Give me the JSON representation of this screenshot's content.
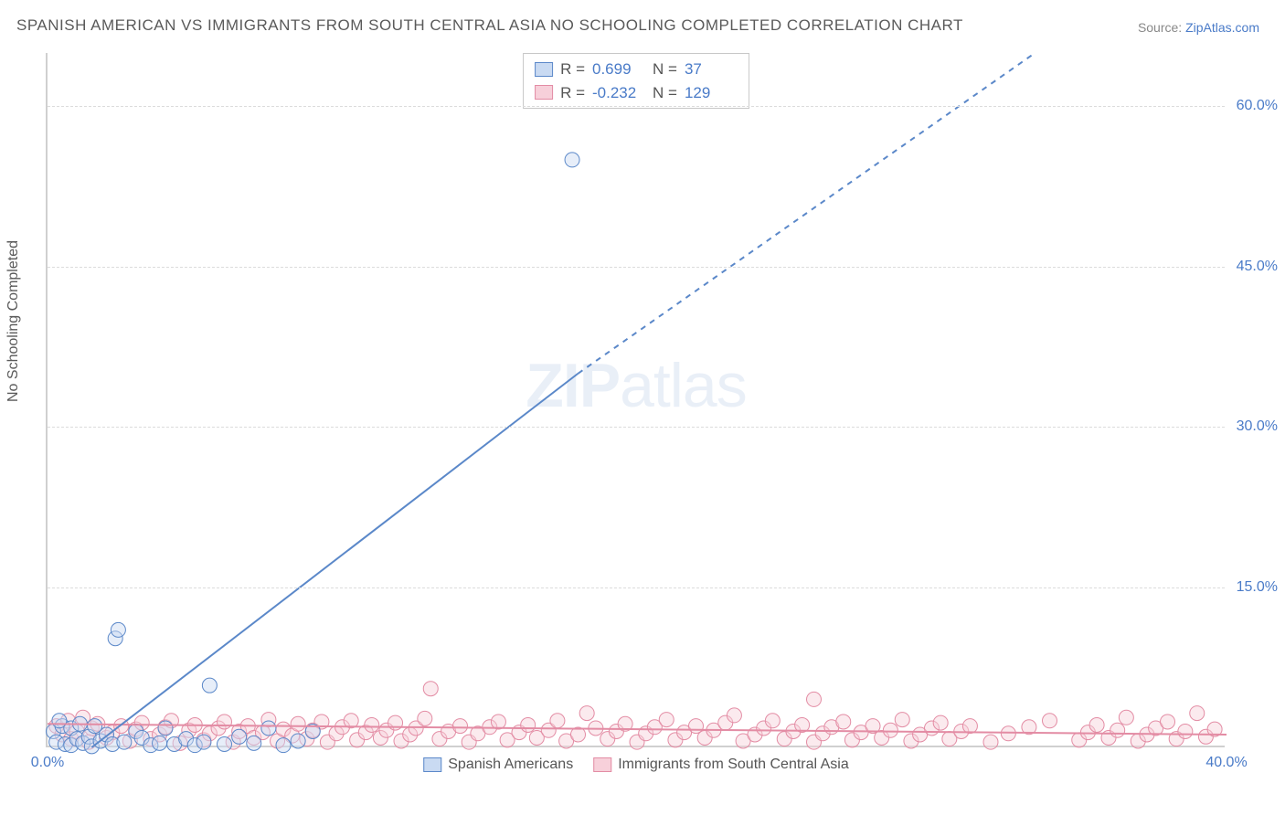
{
  "title": "SPANISH AMERICAN VS IMMIGRANTS FROM SOUTH CENTRAL ASIA NO SCHOOLING COMPLETED CORRELATION CHART",
  "source_label": "Source: ",
  "source_link": "ZipAtlas.com",
  "ylabel": "No Schooling Completed",
  "watermark_a": "ZIP",
  "watermark_b": "atlas",
  "chart": {
    "type": "scatter-correlation",
    "background_color": "#ffffff",
    "grid_color": "#dcdcdc",
    "axis_color": "#d0d0d0",
    "xlim": [
      0,
      40
    ],
    "ylim": [
      0,
      65
    ],
    "ytick_labels": [
      "15.0%",
      "30.0%",
      "45.0%",
      "60.0%"
    ],
    "ytick_values": [
      15,
      30,
      45,
      60
    ],
    "xtick_labels": [
      "0.0%",
      "40.0%"
    ],
    "xtick_values": [
      0,
      40
    ],
    "marker_radius": 8,
    "marker_opacity": 0.45,
    "series": {
      "blue": {
        "label": "Spanish Americans",
        "fill": "#c9daf2",
        "stroke": "#5b88c9",
        "R": "0.699",
        "N": "37",
        "regression_solid": {
          "x1": 1.5,
          "y1": 0,
          "x2": 18,
          "y2": 35
        },
        "regression_dashed": {
          "x1": 18,
          "y1": 35,
          "x2": 33.5,
          "y2": 65
        },
        "line_width": 2,
        "points": [
          [
            0.2,
            1.5
          ],
          [
            0.3,
            0.5
          ],
          [
            0.5,
            2.0
          ],
          [
            0.6,
            0.3
          ],
          [
            0.8,
            1.8
          ],
          [
            0.8,
            0.2
          ],
          [
            1.0,
            0.8
          ],
          [
            1.1,
            2.2
          ],
          [
            1.2,
            0.4
          ],
          [
            1.4,
            1.0
          ],
          [
            1.5,
            0.1
          ],
          [
            1.8,
            0.6
          ],
          [
            2.0,
            1.2
          ],
          [
            2.2,
            0.3
          ],
          [
            2.3,
            10.2
          ],
          [
            2.4,
            11.0
          ],
          [
            2.6,
            0.5
          ],
          [
            3.0,
            1.5
          ],
          [
            3.2,
            0.9
          ],
          [
            3.5,
            0.2
          ],
          [
            3.8,
            0.4
          ],
          [
            4.0,
            1.8
          ],
          [
            4.3,
            0.3
          ],
          [
            4.7,
            0.8
          ],
          [
            5.0,
            0.2
          ],
          [
            5.3,
            0.5
          ],
          [
            5.5,
            5.8
          ],
          [
            6.0,
            0.3
          ],
          [
            6.5,
            1.0
          ],
          [
            7.0,
            0.4
          ],
          [
            7.5,
            1.8
          ],
          [
            8.0,
            0.2
          ],
          [
            8.5,
            0.6
          ],
          [
            9.0,
            1.5
          ],
          [
            17.8,
            55.0
          ],
          [
            0.4,
            2.5
          ],
          [
            1.6,
            2.0
          ]
        ]
      },
      "pink": {
        "label": "Immigrants from South Central Asia",
        "fill": "#f7d0da",
        "stroke": "#e38ca4",
        "R": "-0.232",
        "N": "129",
        "regression_solid": {
          "x1": 0,
          "y1": 2.2,
          "x2": 40,
          "y2": 1.2
        },
        "line_width": 2,
        "points": [
          [
            0.3,
            2.0
          ],
          [
            0.5,
            1.2
          ],
          [
            0.7,
            2.5
          ],
          [
            0.8,
            0.8
          ],
          [
            1.0,
            1.5
          ],
          [
            1.2,
            2.8
          ],
          [
            1.4,
            0.5
          ],
          [
            1.5,
            1.8
          ],
          [
            1.7,
            2.2
          ],
          [
            2.0,
            0.9
          ],
          [
            2.2,
            1.4
          ],
          [
            2.5,
            2.0
          ],
          [
            2.8,
            0.6
          ],
          [
            3.0,
            1.7
          ],
          [
            3.2,
            2.3
          ],
          [
            3.5,
            0.8
          ],
          [
            3.8,
            1.2
          ],
          [
            4.0,
            1.9
          ],
          [
            4.2,
            2.5
          ],
          [
            4.5,
            0.4
          ],
          [
            4.8,
            1.6
          ],
          [
            5.0,
            2.1
          ],
          [
            5.3,
            0.7
          ],
          [
            5.5,
            1.3
          ],
          [
            5.8,
            1.8
          ],
          [
            6.0,
            2.4
          ],
          [
            6.3,
            0.5
          ],
          [
            6.5,
            1.5
          ],
          [
            6.8,
            2.0
          ],
          [
            7.0,
            0.9
          ],
          [
            7.3,
            1.4
          ],
          [
            7.5,
            2.6
          ],
          [
            7.8,
            0.6
          ],
          [
            8.0,
            1.7
          ],
          [
            8.3,
            1.1
          ],
          [
            8.5,
            2.2
          ],
          [
            8.8,
            0.8
          ],
          [
            9.0,
            1.6
          ],
          [
            9.3,
            2.4
          ],
          [
            9.5,
            0.5
          ],
          [
            9.8,
            1.3
          ],
          [
            10.0,
            1.9
          ],
          [
            10.3,
            2.5
          ],
          [
            10.5,
            0.7
          ],
          [
            10.8,
            1.4
          ],
          [
            11.0,
            2.1
          ],
          [
            11.3,
            0.9
          ],
          [
            11.5,
            1.6
          ],
          [
            11.8,
            2.3
          ],
          [
            12.0,
            0.6
          ],
          [
            12.3,
            1.2
          ],
          [
            12.5,
            1.8
          ],
          [
            12.8,
            2.7
          ],
          [
            13.0,
            5.5
          ],
          [
            13.3,
            0.8
          ],
          [
            13.6,
            1.5
          ],
          [
            14.0,
            2.0
          ],
          [
            14.3,
            0.5
          ],
          [
            14.6,
            1.3
          ],
          [
            15.0,
            1.9
          ],
          [
            15.3,
            2.4
          ],
          [
            15.6,
            0.7
          ],
          [
            16.0,
            1.4
          ],
          [
            16.3,
            2.1
          ],
          [
            16.6,
            0.9
          ],
          [
            17.0,
            1.6
          ],
          [
            17.3,
            2.5
          ],
          [
            17.6,
            0.6
          ],
          [
            18.0,
            1.2
          ],
          [
            18.3,
            3.2
          ],
          [
            18.6,
            1.8
          ],
          [
            19.0,
            0.8
          ],
          [
            19.3,
            1.5
          ],
          [
            19.6,
            2.2
          ],
          [
            20.0,
            0.5
          ],
          [
            20.3,
            1.3
          ],
          [
            20.6,
            1.9
          ],
          [
            21.0,
            2.6
          ],
          [
            21.3,
            0.7
          ],
          [
            21.6,
            1.4
          ],
          [
            22.0,
            2.0
          ],
          [
            22.3,
            0.9
          ],
          [
            22.6,
            1.6
          ],
          [
            23.0,
            2.3
          ],
          [
            23.3,
            3.0
          ],
          [
            23.6,
            0.6
          ],
          [
            24.0,
            1.2
          ],
          [
            24.3,
            1.8
          ],
          [
            24.6,
            2.5
          ],
          [
            25.0,
            0.8
          ],
          [
            25.3,
            1.5
          ],
          [
            25.6,
            2.1
          ],
          [
            26.0,
            4.5
          ],
          [
            26.0,
            0.5
          ],
          [
            26.3,
            1.3
          ],
          [
            26.6,
            1.9
          ],
          [
            27.0,
            2.4
          ],
          [
            27.3,
            0.7
          ],
          [
            27.6,
            1.4
          ],
          [
            28.0,
            2.0
          ],
          [
            28.3,
            0.9
          ],
          [
            28.6,
            1.6
          ],
          [
            29.0,
            2.6
          ],
          [
            29.3,
            0.6
          ],
          [
            29.6,
            1.2
          ],
          [
            30.0,
            1.8
          ],
          [
            30.3,
            2.3
          ],
          [
            30.6,
            0.8
          ],
          [
            31.0,
            1.5
          ],
          [
            31.3,
            2.0
          ],
          [
            32.0,
            0.5
          ],
          [
            32.6,
            1.3
          ],
          [
            33.3,
            1.9
          ],
          [
            34.0,
            2.5
          ],
          [
            35.0,
            0.7
          ],
          [
            35.3,
            1.4
          ],
          [
            35.6,
            2.1
          ],
          [
            36.0,
            0.9
          ],
          [
            36.3,
            1.6
          ],
          [
            36.6,
            2.8
          ],
          [
            37.0,
            0.6
          ],
          [
            37.3,
            1.2
          ],
          [
            37.6,
            1.8
          ],
          [
            38.0,
            2.4
          ],
          [
            38.3,
            0.8
          ],
          [
            38.6,
            1.5
          ],
          [
            39.0,
            3.2
          ],
          [
            39.3,
            1.0
          ],
          [
            39.6,
            1.7
          ]
        ]
      }
    }
  },
  "stats_prefix_r": "R = ",
  "stats_prefix_n": "N = "
}
